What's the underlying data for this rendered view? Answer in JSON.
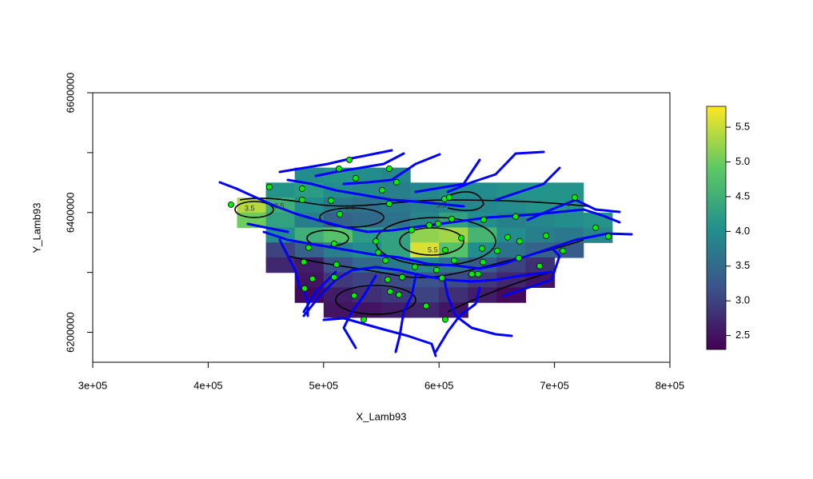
{
  "chart_data": {
    "type": "raster",
    "xlabel": "X_Lamb93",
    "ylabel": "Y_Lamb93",
    "xlim": [
      300000,
      800000
    ],
    "ylim": [
      6150000,
      6600000
    ],
    "xticks": [
      {
        "value": 300000,
        "label": "3e+05"
      },
      {
        "value": 400000,
        "label": "4e+05"
      },
      {
        "value": 500000,
        "label": "5e+05"
      },
      {
        "value": 600000,
        "label": "6e+05"
      },
      {
        "value": 700000,
        "label": "7e+05"
      },
      {
        "value": 800000,
        "label": "8e+05"
      }
    ],
    "yticks": [
      6200000,
      {
        "value": 6300000,
        "label": null
      },
      6400000,
      {
        "value": 6500000,
        "label": null
      },
      6600000
    ],
    "raster": {
      "x": [
        437500,
        462500,
        487500,
        512500,
        537500,
        562500,
        587500,
        612500,
        637500,
        662500,
        687500,
        712500,
        737500
      ],
      "y": [
        6462500,
        6437500,
        6412500,
        6387500,
        6362500,
        6337500,
        6312500,
        6287500,
        6262500,
        6237500
      ],
      "values": [
        [
          null,
          null,
          4.0,
          4.1,
          4.0,
          3.9,
          null,
          null,
          null,
          null,
          null,
          null,
          null
        ],
        [
          null,
          4.1,
          4.2,
          4.0,
          3.9,
          3.8,
          3.9,
          4.0,
          4.0,
          4.1,
          4.1,
          4.1,
          null
        ],
        [
          5.4,
          4.5,
          4.0,
          3.7,
          3.6,
          3.7,
          3.8,
          3.9,
          3.9,
          4.0,
          4.1,
          4.1,
          null
        ],
        [
          5.0,
          4.3,
          3.8,
          3.4,
          3.5,
          3.6,
          3.9,
          4.3,
          4.0,
          3.8,
          3.9,
          4.0,
          4.1
        ],
        [
          null,
          4.0,
          4.5,
          4.8,
          4.2,
          4.3,
          5.2,
          5.3,
          4.6,
          4.0,
          3.8,
          3.7,
          3.9
        ],
        [
          null,
          3.0,
          3.4,
          3.8,
          4.0,
          4.3,
          5.6,
          4.8,
          4.0,
          3.6,
          3.4,
          3.3,
          null
        ],
        [
          null,
          2.7,
          2.6,
          3.2,
          3.5,
          3.7,
          3.9,
          3.6,
          3.3,
          3.0,
          2.8,
          null,
          null
        ],
        [
          null,
          null,
          2.5,
          2.9,
          3.0,
          3.1,
          3.2,
          3.1,
          2.9,
          2.7,
          2.5,
          null,
          null
        ],
        [
          null,
          null,
          2.4,
          2.6,
          2.8,
          2.9,
          3.0,
          2.8,
          2.6,
          2.4,
          null,
          null,
          null
        ],
        [
          null,
          null,
          null,
          2.5,
          2.5,
          2.6,
          2.7,
          2.5,
          null,
          null,
          null,
          null,
          null
        ]
      ]
    },
    "colorbar": {
      "lim": [
        2.3,
        5.8
      ],
      "ticks": [
        2.5,
        {
          "value": 3.0,
          "label": "3.0"
        },
        3.5,
        {
          "value": 4.0,
          "label": "4.0"
        },
        4.5,
        {
          "value": 5.0,
          "label": "5.0"
        },
        5.5
      ]
    },
    "stations": {
      "color": "#00ee00",
      "x": [
        419800,
        453000,
        481400,
        481400,
        513300,
        522300,
        527800,
        556900,
        550700,
        563200,
        506400,
        514000,
        556900,
        604700,
        608900,
        611000,
        638700,
        666400,
        717600,
        735600,
        746700,
        692700,
        669800,
        659400,
        576300,
        591600,
        599200,
        619300,
        545200,
        547400,
        553700,
        509100,
        487000,
        482800,
        511200,
        509100,
        483500,
        490300,
        526500,
        534800,
        555500,
        557600,
        565200,
        568000,
        579100,
        597800,
        602600,
        613000,
        605400,
        638000,
        637300,
        628300,
        633800,
        650400,
        669100,
        687100,
        707200,
        588800,
        605400
      ],
      "y": [
        6413300,
        6442700,
        6440000,
        6421300,
        6473300,
        6488000,
        6457300,
        6473300,
        6437300,
        6450700,
        6420000,
        6397300,
        6414700,
        6422700,
        6425300,
        6389300,
        6388000,
        6393300,
        6425300,
        6374700,
        6360000,
        6361300,
        6352000,
        6358700,
        6370700,
        6378700,
        6381300,
        6357300,
        6352000,
        6333300,
        6320000,
        6348000,
        6341300,
        6317300,
        6313300,
        6292000,
        6273300,
        6289300,
        6261300,
        6221300,
        6288000,
        6268000,
        6262700,
        6292000,
        6309300,
        6304000,
        6290700,
        6320000,
        6337300,
        6317300,
        6340000,
        6297300,
        6297300,
        6336000,
        6324000,
        6310700,
        6336000,
        6244000,
        6221300
      ]
    },
    "contour_labels": [
      "3.5",
      "3.5",
      "3.5",
      "3.5",
      "4",
      "5.5"
    ]
  }
}
